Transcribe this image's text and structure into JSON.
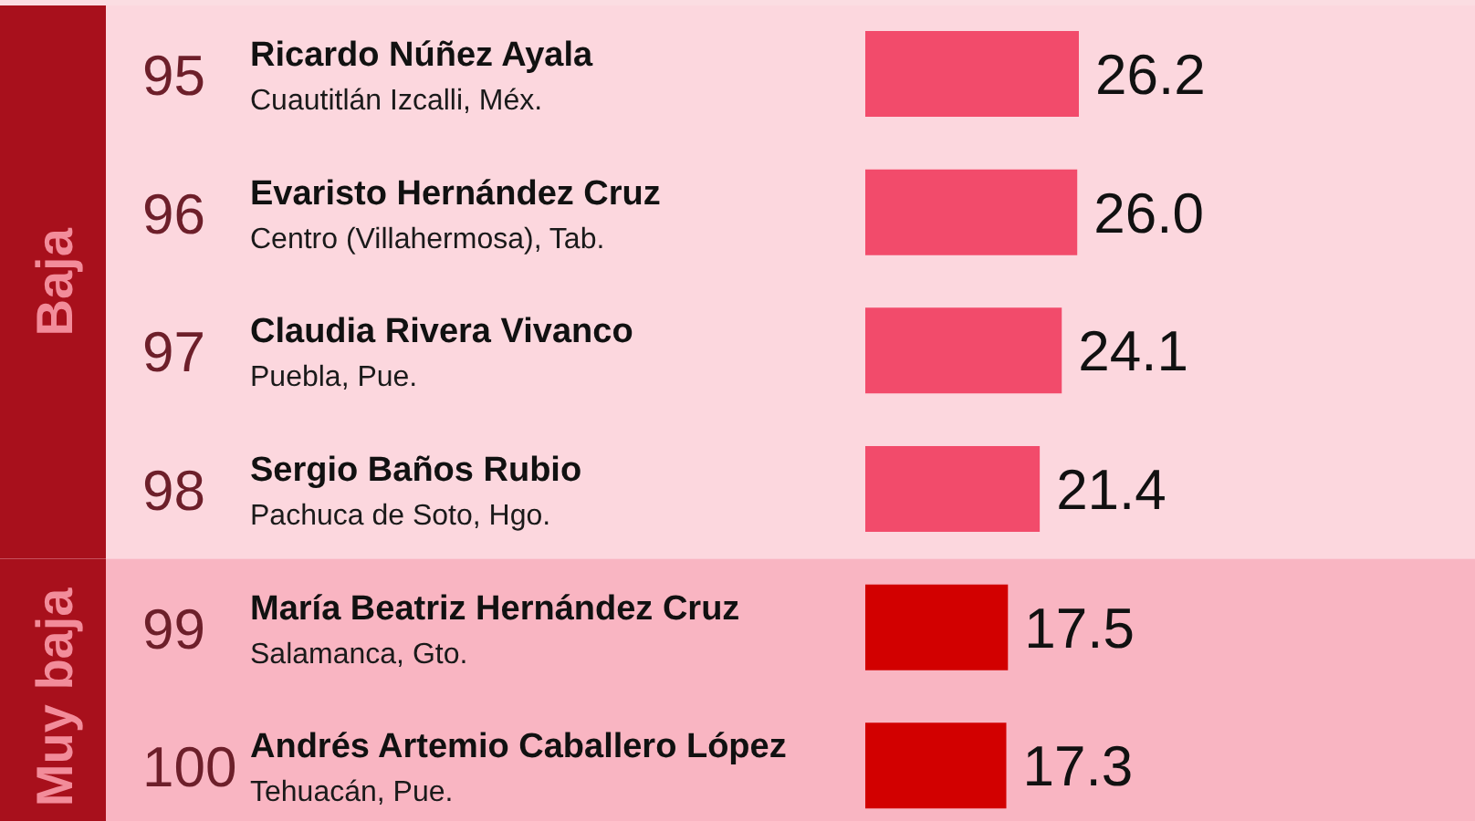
{
  "chart_data": {
    "type": "bar",
    "orientation": "horizontal",
    "categories": [
      "95\nRicardo Núñez Ayala\nCuautitlán Izcalli, Méx.",
      "96\nEvaristo Hernández Cruz\nCentro (Villahermosa), Tab.",
      "97\nClaudia Rivera Vivanco\nPuebla, Pue.",
      "98\nSergio Baños Rubio\nPachuca de Soto, Hgo.",
      "99\nMaría Beatriz Hernández Cruz\nSalamanca, Gto.",
      "100\nAndrés Artemio Caballero López\nTehuacán, Pue."
    ],
    "values": [
      26.2,
      26.0,
      24.1,
      21.4,
      17.5,
      17.3
    ],
    "value_labels": [
      "26.2",
      "26.0",
      "24.1",
      "21.4",
      "17.5",
      "17.3"
    ],
    "colors": [
      "#f24b6b",
      "#f24b6b",
      "#f24b6b",
      "#f24b6b",
      "#d20000",
      "#d20000"
    ],
    "bands": [
      {
        "axis": "y",
        "from": "95\nRicardo Núñez Ayala\nCuautitlán Izcalli, Méx.",
        "to": "98\nSergio Baños Rubio\nPachuca de Soto, Hgo.",
        "label": "Baja",
        "color": "#fcd7de"
      },
      {
        "axis": "y",
        "from": "99\nMaría Beatriz Hernández Cruz\nSalamanca, Gto.",
        "to": "100\nAndrés Artemio Caballero López\nTehuacán, Pue.",
        "label": "Muy baja",
        "color": "#f9b5c2"
      }
    ]
  }
}
